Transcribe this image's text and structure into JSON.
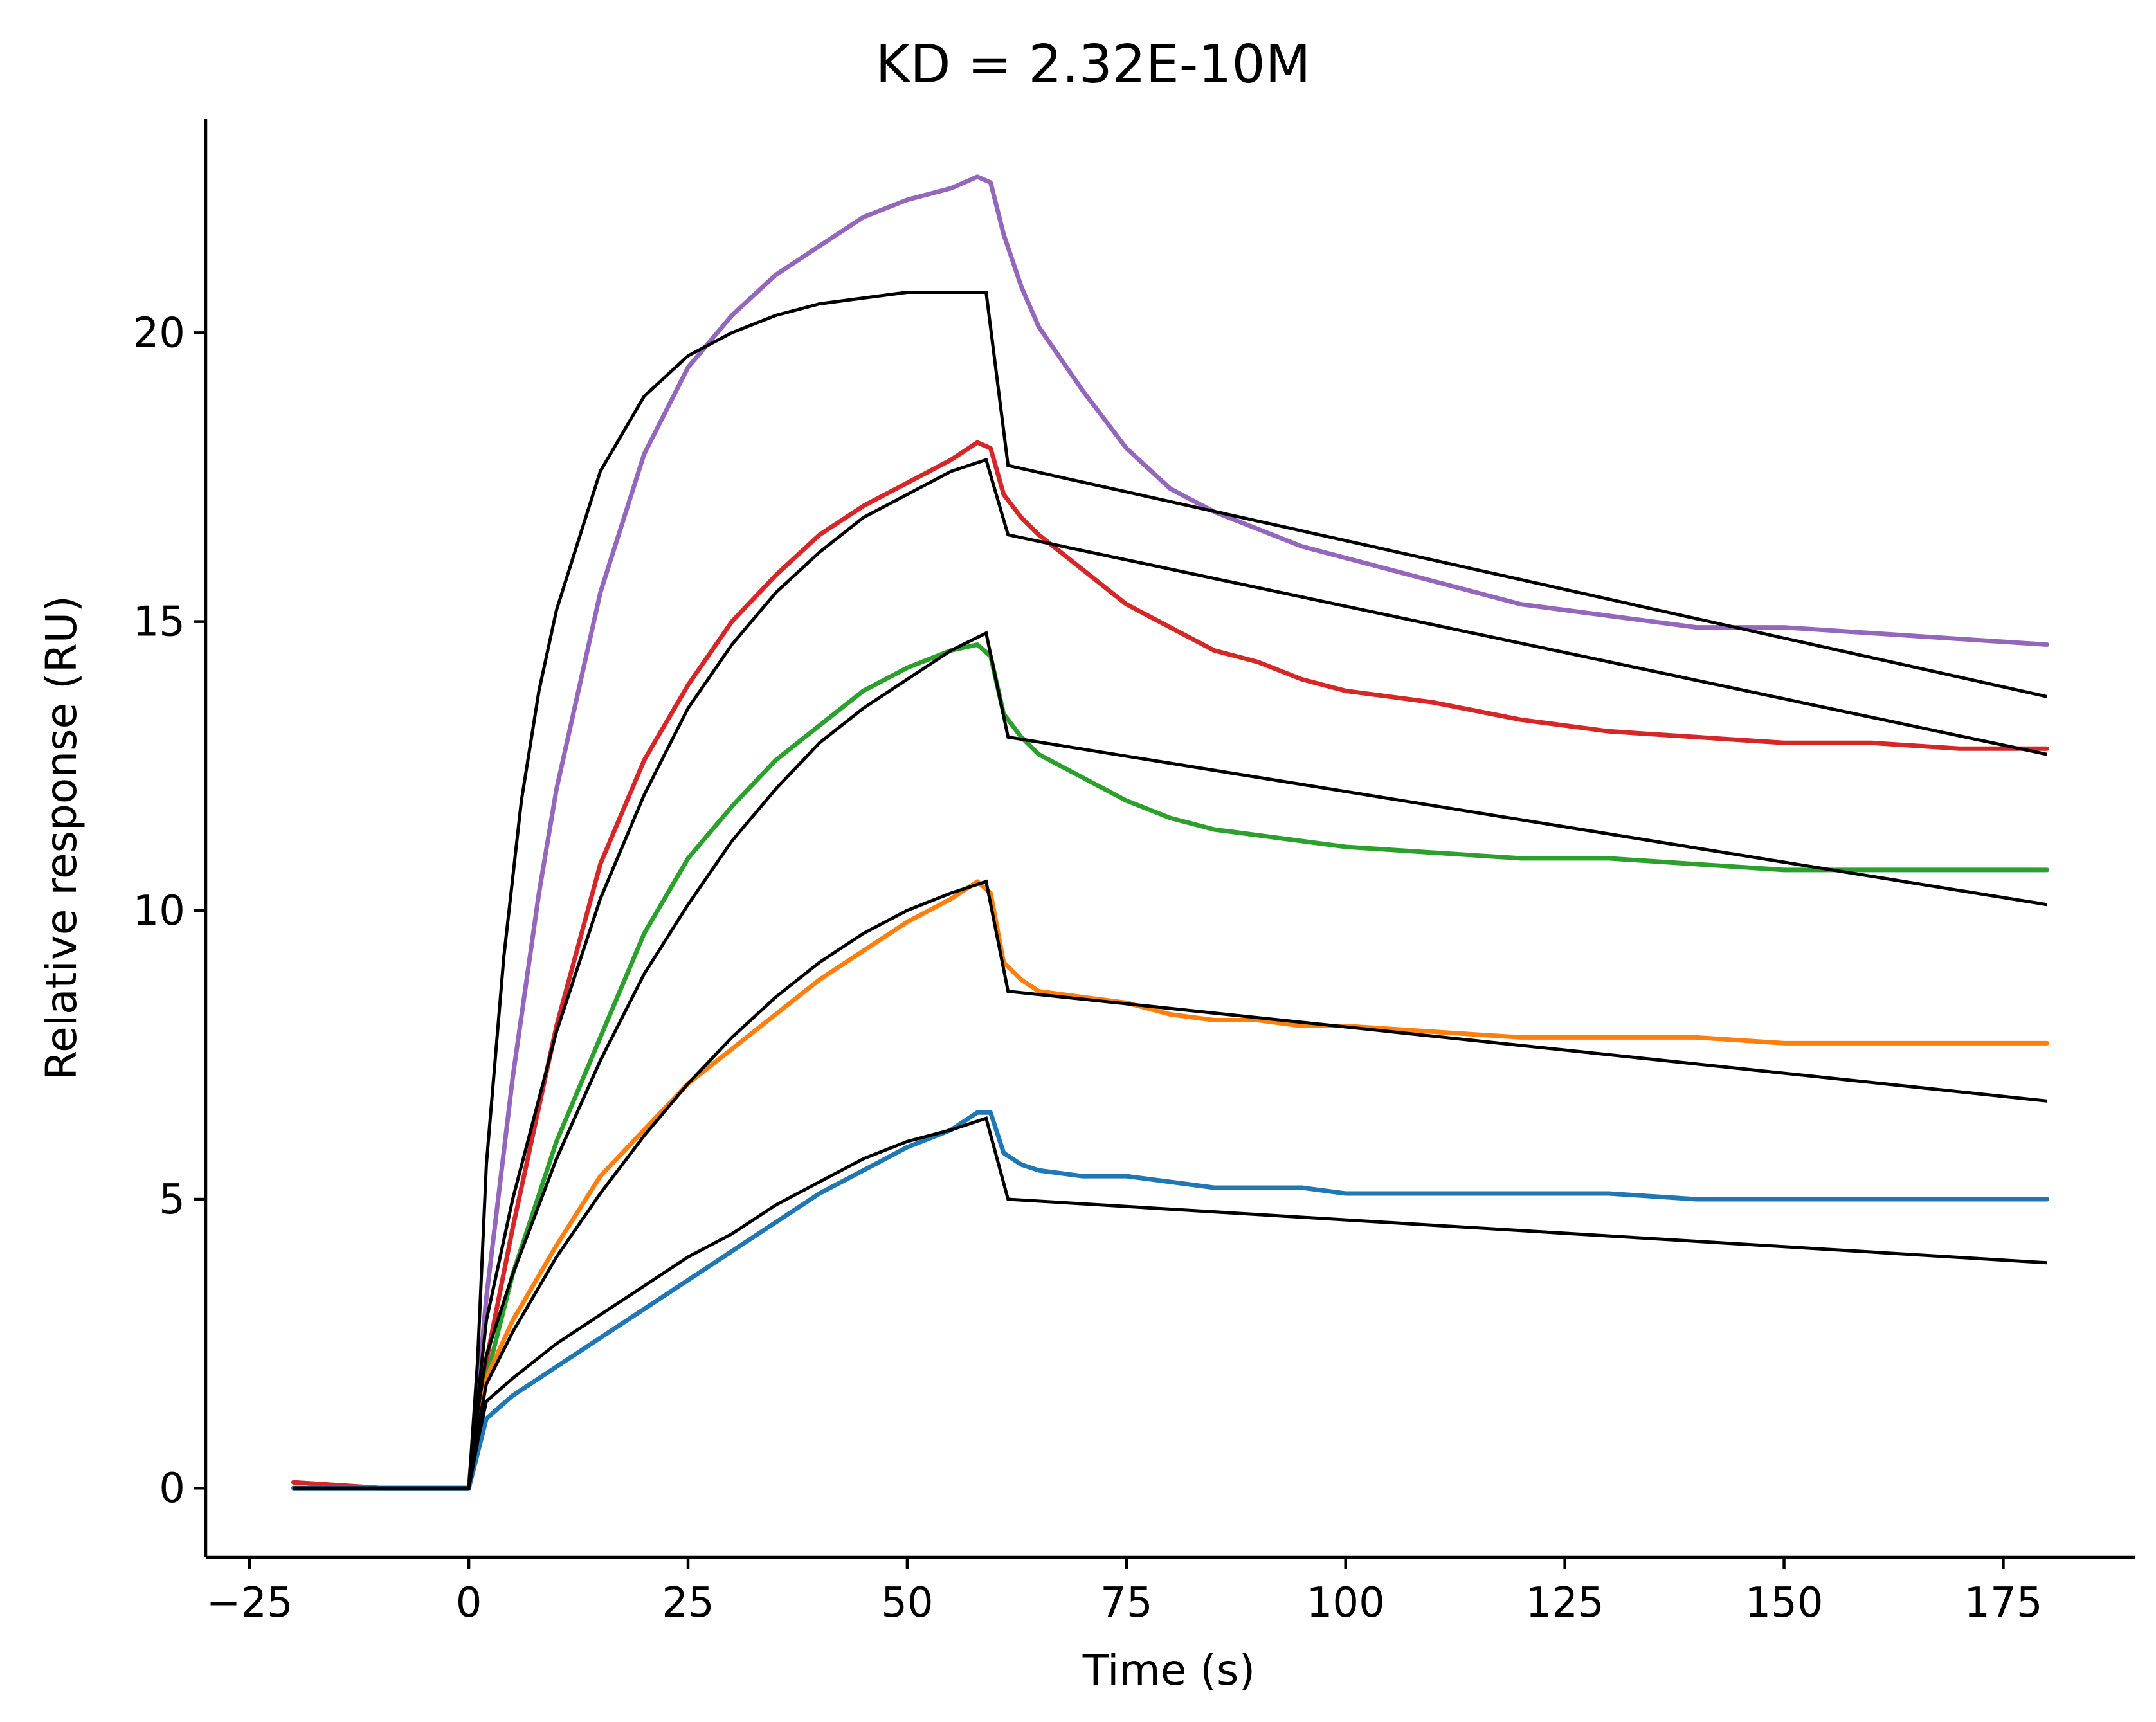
{
  "chart_data": {
    "type": "line",
    "title": "KD = 2.32E-10M",
    "xlabel": "Time (s)",
    "ylabel": "Relative response (RU)",
    "xlim": [
      -30,
      190
    ],
    "ylim": [
      -1.2,
      23.7
    ],
    "xticks": [
      -25,
      0,
      25,
      50,
      75,
      100,
      125,
      150,
      175
    ],
    "xtick_labels": [
      "−25",
      "0",
      "25",
      "50",
      "75",
      "100",
      "125",
      "150",
      "175"
    ],
    "yticks": [
      0,
      5,
      10,
      15,
      20
    ],
    "ytick_labels": [
      "0",
      "5",
      "10",
      "15",
      "20"
    ],
    "grid": false,
    "legend": "none",
    "series": [
      {
        "name": "purple",
        "color": "#9467bd",
        "x": [
          -20,
          -10,
          0,
          2,
          5,
          8,
          10,
          15,
          20,
          25,
          30,
          35,
          40,
          45,
          50,
          55,
          58,
          59.5,
          61,
          63,
          65,
          70,
          75,
          80,
          85,
          90,
          95,
          100,
          110,
          120,
          130,
          140,
          150,
          160,
          170,
          180
        ],
        "y": [
          0.1,
          0.0,
          0.0,
          3.3,
          7.1,
          10.3,
          12.1,
          15.5,
          17.9,
          19.4,
          20.3,
          21.0,
          21.5,
          22.0,
          22.3,
          22.5,
          22.7,
          22.6,
          21.7,
          20.8,
          20.1,
          19.0,
          18.0,
          17.3,
          16.9,
          16.6,
          16.3,
          16.1,
          15.7,
          15.3,
          15.1,
          14.9,
          14.9,
          14.8,
          14.7,
          14.6
        ]
      },
      {
        "name": "red",
        "color": "#d62728",
        "x": [
          -20,
          -10,
          0,
          2,
          5,
          10,
          15,
          20,
          25,
          30,
          35,
          40,
          45,
          50,
          55,
          58,
          59.5,
          61,
          63,
          65,
          70,
          75,
          80,
          85,
          90,
          95,
          100,
          110,
          120,
          130,
          140,
          150,
          160,
          170,
          180
        ],
        "y": [
          0.1,
          0.0,
          0.0,
          2.2,
          4.5,
          8.0,
          10.8,
          12.6,
          13.9,
          15.0,
          15.8,
          16.5,
          17.0,
          17.4,
          17.8,
          18.1,
          18.0,
          17.2,
          16.8,
          16.5,
          15.9,
          15.3,
          14.9,
          14.5,
          14.3,
          14.0,
          13.8,
          13.6,
          13.3,
          13.1,
          13.0,
          12.9,
          12.9,
          12.8,
          12.8
        ]
      },
      {
        "name": "green",
        "color": "#2ca02c",
        "x": [
          -20,
          -10,
          0,
          2,
          5,
          10,
          15,
          20,
          25,
          30,
          35,
          40,
          45,
          50,
          55,
          58,
          59.5,
          61,
          63,
          65,
          70,
          75,
          80,
          85,
          90,
          95,
          100,
          110,
          120,
          130,
          140,
          150,
          160,
          170,
          180
        ],
        "y": [
          0.0,
          0.0,
          0.0,
          1.9,
          3.7,
          6.0,
          7.8,
          9.6,
          10.9,
          11.8,
          12.6,
          13.2,
          13.8,
          14.2,
          14.5,
          14.6,
          14.4,
          13.4,
          13.0,
          12.7,
          12.3,
          11.9,
          11.6,
          11.4,
          11.3,
          11.2,
          11.1,
          11.0,
          10.9,
          10.9,
          10.8,
          10.7,
          10.7,
          10.7,
          10.7
        ]
      },
      {
        "name": "orange",
        "color": "#ff7f0e",
        "x": [
          -20,
          -10,
          0,
          2,
          5,
          10,
          15,
          20,
          25,
          30,
          35,
          40,
          45,
          50,
          55,
          58,
          59.5,
          61,
          63,
          65,
          70,
          75,
          80,
          85,
          90,
          95,
          100,
          110,
          120,
          130,
          140,
          150,
          160,
          170,
          180
        ],
        "y": [
          0.0,
          0.0,
          0.0,
          1.9,
          2.9,
          4.2,
          5.4,
          6.2,
          7.0,
          7.6,
          8.2,
          8.8,
          9.3,
          9.8,
          10.2,
          10.5,
          10.3,
          9.1,
          8.8,
          8.6,
          8.5,
          8.4,
          8.2,
          8.1,
          8.1,
          8.0,
          8.0,
          7.9,
          7.8,
          7.8,
          7.8,
          7.7,
          7.7,
          7.7,
          7.7
        ]
      },
      {
        "name": "blue",
        "color": "#1f77b4",
        "x": [
          -20,
          -10,
          0,
          2,
          5,
          10,
          15,
          20,
          25,
          30,
          35,
          40,
          45,
          50,
          55,
          58,
          59.5,
          61,
          63,
          65,
          70,
          75,
          80,
          85,
          90,
          95,
          100,
          110,
          120,
          130,
          140,
          150,
          160,
          170,
          180
        ],
        "y": [
          0.0,
          0.0,
          0.0,
          1.2,
          1.6,
          2.1,
          2.6,
          3.1,
          3.6,
          4.1,
          4.6,
          5.1,
          5.5,
          5.9,
          6.2,
          6.5,
          6.5,
          5.8,
          5.6,
          5.5,
          5.4,
          5.4,
          5.3,
          5.2,
          5.2,
          5.2,
          5.1,
          5.1,
          5.1,
          5.1,
          5.0,
          5.0,
          5.0,
          5.0,
          5.0
        ]
      }
    ],
    "fits": [
      {
        "name": "fit-purple",
        "color": "#000000",
        "x": [
          -20,
          0,
          1,
          2,
          4,
          6,
          8,
          10,
          15,
          20,
          25,
          30,
          35,
          40,
          45,
          50,
          55,
          59,
          61.5,
          180
        ],
        "y": [
          0.0,
          0.0,
          2.2,
          5.6,
          9.2,
          11.9,
          13.8,
          15.2,
          17.6,
          18.9,
          19.6,
          20.0,
          20.3,
          20.5,
          20.6,
          20.7,
          20.7,
          20.7,
          17.7,
          13.7
        ]
      },
      {
        "name": "fit-red",
        "color": "#000000",
        "x": [
          -20,
          0,
          1,
          2,
          5,
          10,
          15,
          20,
          25,
          30,
          35,
          40,
          45,
          50,
          55,
          59,
          61.5,
          180
        ],
        "y": [
          0.0,
          0.0,
          1.5,
          2.9,
          5.0,
          7.9,
          10.2,
          12.0,
          13.5,
          14.6,
          15.5,
          16.2,
          16.8,
          17.2,
          17.6,
          17.8,
          16.5,
          12.7
        ]
      },
      {
        "name": "fit-green",
        "color": "#000000",
        "x": [
          -20,
          0,
          1,
          2,
          5,
          10,
          15,
          20,
          25,
          30,
          35,
          40,
          45,
          50,
          55,
          59,
          61.5,
          180
        ],
        "y": [
          0.0,
          0.0,
          1.3,
          2.3,
          3.7,
          5.7,
          7.4,
          8.9,
          10.1,
          11.2,
          12.1,
          12.9,
          13.5,
          14.0,
          14.5,
          14.8,
          13.0,
          10.1
        ]
      },
      {
        "name": "fit-orange",
        "color": "#000000",
        "x": [
          -20,
          0,
          1,
          2,
          5,
          10,
          15,
          20,
          25,
          30,
          35,
          40,
          45,
          50,
          55,
          59,
          61.5,
          180
        ],
        "y": [
          0.0,
          0.0,
          1.0,
          1.8,
          2.7,
          4.0,
          5.1,
          6.1,
          7.0,
          7.8,
          8.5,
          9.1,
          9.6,
          10.0,
          10.3,
          10.5,
          8.6,
          6.7
        ]
      },
      {
        "name": "fit-blue",
        "color": "#000000",
        "x": [
          -20,
          0,
          1,
          2,
          5,
          10,
          15,
          20,
          25,
          30,
          35,
          40,
          45,
          50,
          55,
          59,
          61.5,
          180
        ],
        "y": [
          0.0,
          0.0,
          0.8,
          1.5,
          1.9,
          2.5,
          3.0,
          3.5,
          4.0,
          4.4,
          4.9,
          5.3,
          5.7,
          6.0,
          6.2,
          6.4,
          5.0,
          3.9
        ]
      }
    ]
  }
}
